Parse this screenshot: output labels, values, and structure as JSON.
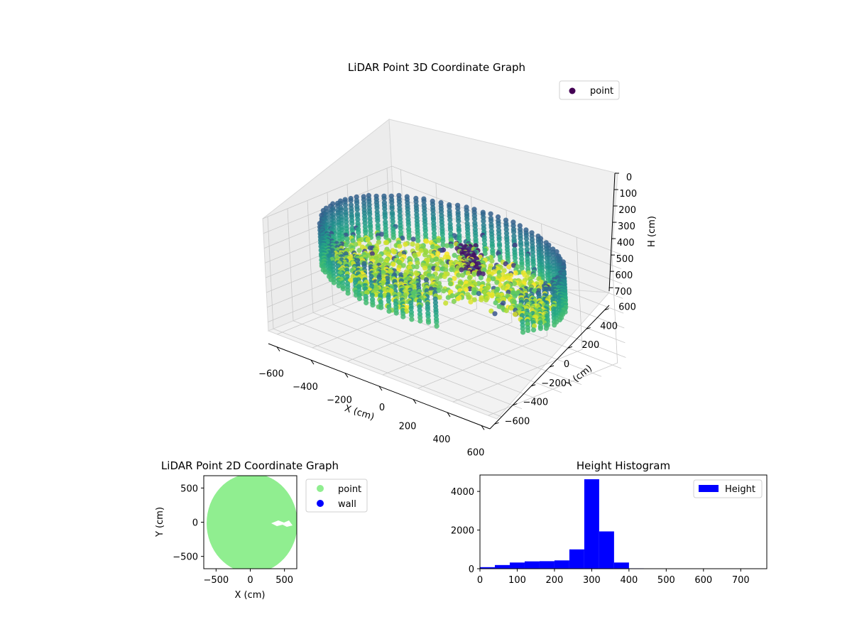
{
  "chart_data": [
    {
      "type": "scatter3d",
      "title": "LiDAR Point 3D Coordinate Graph",
      "xlabel": "X (cm)",
      "ylabel": "Y (cm)",
      "zlabel": "H (cm)",
      "xlim": [
        -650,
        650
      ],
      "ylim": [
        -650,
        650
      ],
      "zlim": [
        0,
        760
      ],
      "z_inverted": true,
      "xticks": [
        -600,
        -400,
        -200,
        0,
        200,
        400,
        600
      ],
      "yticks": [
        -600,
        -400,
        -200,
        0,
        200,
        400,
        600
      ],
      "zticks": [
        0,
        100,
        200,
        300,
        400,
        500,
        600,
        700
      ],
      "legend": {
        "placement": "top-right",
        "entries": [
          {
            "label": "point",
            "color": "#440154"
          }
        ]
      },
      "colormap": "viridis",
      "grid": true,
      "series": [
        {
          "name": "point",
          "description_points": "wall ring of radius ~600 cm plus interior floor points; color mapped by height",
          "samples": [
            {
              "x": -600,
              "y": 0,
              "z": 300
            },
            {
              "x": 0,
              "y": 600,
              "z": 300
            },
            {
              "x": 600,
              "y": 0,
              "z": 300
            },
            {
              "x": 0,
              "y": -600,
              "z": 300
            },
            {
              "x": 0,
              "y": 0,
              "z": 20
            },
            {
              "x": 100,
              "y": 50,
              "z": 100
            }
          ]
        }
      ]
    },
    {
      "type": "scatter",
      "title": "LiDAR Point 2D Coordinate Graph",
      "xlabel": "X (cm)",
      "ylabel": "Y (cm)",
      "xlim": [
        -680,
        680
      ],
      "ylim": [
        -680,
        680
      ],
      "xticks": [
        -500,
        0,
        500
      ],
      "yticks": [
        -500,
        0,
        500
      ],
      "legend": {
        "placement": "outside-right",
        "entries": [
          {
            "label": "point",
            "color": "#90ee90"
          },
          {
            "label": "wall",
            "color": "#0000ff"
          }
        ]
      },
      "series": [
        {
          "name": "point",
          "color": "#90ee90",
          "shape": "filled disk radius ~640 cm centered at (0,0)"
        },
        {
          "name": "wall",
          "color": "#0000ff",
          "points": []
        }
      ]
    },
    {
      "type": "bar",
      "title": "Height Histogram",
      "xlim": [
        0,
        770
      ],
      "ylim": [
        0,
        4850
      ],
      "xticks": [
        0,
        100,
        200,
        300,
        400,
        500,
        600,
        700
      ],
      "yticks": [
        0,
        2000,
        4000
      ],
      "legend": {
        "placement": "top-right",
        "entries": [
          {
            "label": "Height",
            "color": "#0000ff"
          }
        ]
      },
      "bin_edges": [
        0,
        40,
        80,
        120,
        160,
        200,
        240,
        280,
        320,
        360,
        400,
        440,
        480,
        520,
        560,
        600,
        640,
        680,
        720,
        760
      ],
      "series": [
        {
          "name": "Height",
          "color": "#0000ff",
          "values": [
            80,
            190,
            320,
            380,
            390,
            430,
            1000,
            4630,
            1930,
            320,
            20,
            8,
            6,
            5,
            4,
            3,
            3,
            2,
            2
          ]
        }
      ]
    }
  ],
  "colors": {
    "viridis_dark": "#440154",
    "point_2d": "#90ee90",
    "wall_2d": "#0000ff",
    "histogram": "#0000ff"
  }
}
